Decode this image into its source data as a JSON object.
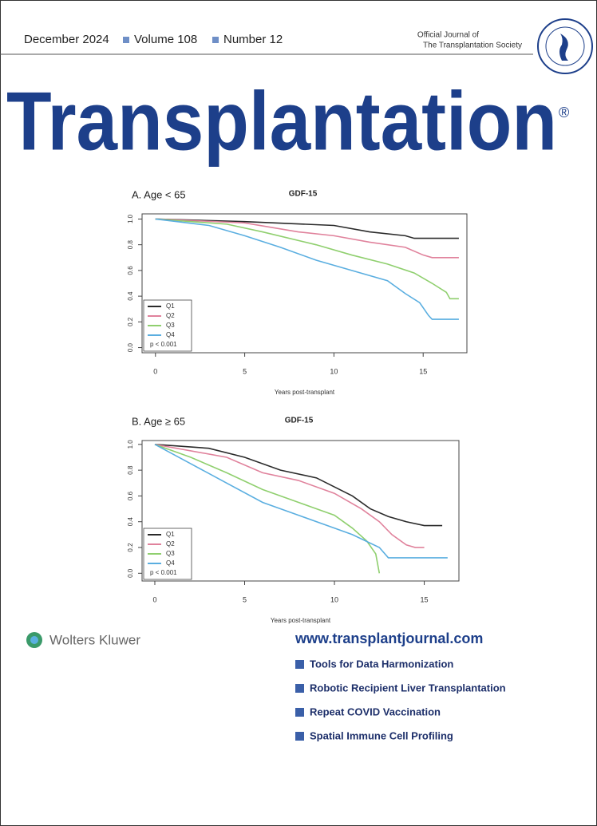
{
  "header": {
    "date": "December 2024",
    "volume": "Volume 108",
    "number": "Number 12",
    "society": [
      "Official Journal of",
      "The Transplantation Society"
    ]
  },
  "title": "Transplantation",
  "registered": "®",
  "chart_data": [
    {
      "type": "line",
      "label": "A. Age < 65",
      "title": "GDF-15",
      "xlabel": "Years post-transplant",
      "annotation": "p < 0.001",
      "xlim": [
        -0.75,
        17.45
      ],
      "xticks": [
        0,
        5,
        10,
        15
      ],
      "ylim": [
        -0.04,
        1.04
      ],
      "yticks": [
        {
          "value": 0,
          "label": "0.0"
        },
        0.2,
        0.4,
        0.6,
        0.8,
        {
          "value": 1,
          "label": "1.0"
        }
      ],
      "legend": "bottom-left",
      "series": [
        {
          "name": "Q1",
          "color": "#2a2a2a",
          "x": [
            0,
            5,
            10,
            12,
            14,
            14.5,
            17
          ],
          "values": [
            1.0,
            0.98,
            0.95,
            0.9,
            0.87,
            0.85,
            0.85
          ]
        },
        {
          "name": "Q2",
          "color": "#e0829c",
          "x": [
            0,
            5,
            8,
            10,
            12,
            14,
            15,
            15.5,
            17
          ],
          "values": [
            1.0,
            0.97,
            0.9,
            0.87,
            0.82,
            0.78,
            0.72,
            0.7,
            0.7
          ]
        },
        {
          "name": "Q3",
          "color": "#8fcf6e",
          "x": [
            0,
            4,
            6,
            9,
            11,
            13,
            14.5,
            15.5,
            16.3,
            16.5,
            17
          ],
          "values": [
            1.0,
            0.96,
            0.9,
            0.8,
            0.72,
            0.65,
            0.58,
            0.5,
            0.43,
            0.38,
            0.38
          ]
        },
        {
          "name": "Q4",
          "color": "#5aaee0",
          "x": [
            0,
            3,
            5,
            7,
            9,
            11,
            13,
            14,
            14.8,
            15.3,
            15.5,
            17
          ],
          "values": [
            1.0,
            0.95,
            0.87,
            0.78,
            0.68,
            0.6,
            0.52,
            0.42,
            0.35,
            0.25,
            0.22,
            0.22
          ]
        }
      ]
    },
    {
      "type": "line",
      "label": "B. Age ≥ 65",
      "title": "GDF-15",
      "xlabel": "Years post-transplant",
      "annotation": "p < 0.001",
      "xlim": [
        -0.71,
        16.93
      ],
      "xticks": [
        0,
        5,
        10,
        15
      ],
      "ylim": [
        -0.06,
        1.03
      ],
      "yticks": [
        {
          "value": 0,
          "label": "0.0"
        },
        0.2,
        0.4,
        0.6,
        0.8,
        {
          "value": 1,
          "label": "1.0"
        }
      ],
      "legend": "bottom-left",
      "series": [
        {
          "name": "Q1",
          "color": "#2a2a2a",
          "x": [
            0,
            3,
            5,
            7,
            9,
            11,
            12,
            13,
            14,
            15,
            16
          ],
          "values": [
            1.0,
            0.97,
            0.9,
            0.8,
            0.74,
            0.6,
            0.5,
            0.44,
            0.4,
            0.37,
            0.37
          ]
        },
        {
          "name": "Q2",
          "color": "#e0829c",
          "x": [
            0,
            4,
            6,
            8,
            10,
            11.5,
            12.5,
            13.2,
            14,
            14.5,
            15
          ],
          "values": [
            1.0,
            0.9,
            0.78,
            0.72,
            0.62,
            0.5,
            0.4,
            0.3,
            0.22,
            0.2,
            0.2
          ]
        },
        {
          "name": "Q3",
          "color": "#8fcf6e",
          "x": [
            0,
            2,
            4,
            6,
            8,
            10,
            11,
            11.8,
            12.3,
            12.5
          ],
          "values": [
            1.0,
            0.9,
            0.78,
            0.65,
            0.55,
            0.45,
            0.35,
            0.25,
            0.15,
            0.0
          ]
        },
        {
          "name": "Q4",
          "color": "#5aaee0",
          "x": [
            0,
            2,
            4,
            6,
            8,
            10,
            11,
            12.5,
            13,
            16.3
          ],
          "values": [
            1.0,
            0.85,
            0.7,
            0.55,
            0.45,
            0.35,
            0.3,
            0.2,
            0.12,
            0.12
          ]
        }
      ]
    }
  ],
  "publisher": "Wolters Kluwer",
  "website": "www.transplantjournal.com",
  "topics": [
    "Tools for Data Harmonization",
    "Robotic Recipient Liver Transplantation",
    "Repeat COVID Vaccination",
    "Spatial Immune Cell Profiling"
  ]
}
